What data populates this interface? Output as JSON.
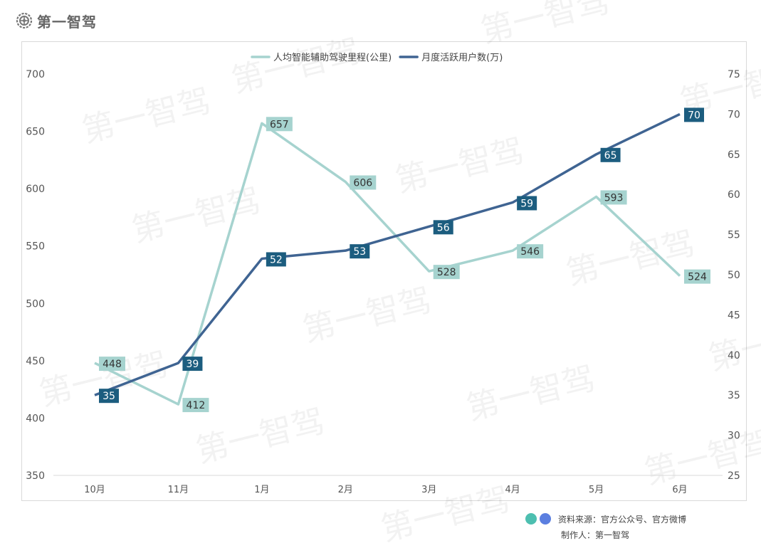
{
  "brand": {
    "name": "第一智驾",
    "icon": "gear-icon"
  },
  "watermark_text": "第一智驾",
  "footer": {
    "source": "资料来源：官方公众号、官方微博",
    "author": "制作人：第一智驾",
    "dot_colors": [
      "#4dbfb0",
      "#5b7fe0"
    ]
  },
  "chart_data": {
    "type": "line",
    "title": "",
    "categories": [
      "10月",
      "11月",
      "1月",
      "2月",
      "3月",
      "4月",
      "5月",
      "6月"
    ],
    "legend_position": "top-center",
    "grid": false,
    "series": [
      {
        "name": "人均智能辅助驾驶里程(公里)",
        "axis": "left",
        "color": "#a6d3cf",
        "label_bg": "#a6d3cf",
        "label_color": "#333333",
        "values": [
          448,
          412,
          657,
          606,
          528,
          546,
          593,
          524
        ]
      },
      {
        "name": "月度活跃用户数(万)",
        "axis": "right",
        "color": "#3f6492",
        "label_bg": "#1c5d7f",
        "label_color": "#ffffff",
        "values": [
          35,
          39,
          52,
          53,
          56,
          59,
          65,
          70
        ]
      }
    ],
    "y_left": {
      "range": [
        350,
        700
      ],
      "ticks": [
        "350",
        "400",
        "450",
        "500",
        "550",
        "600",
        "650",
        "700"
      ]
    },
    "y_right": {
      "range": [
        25,
        75
      ],
      "ticks": [
        "25",
        "30",
        "35",
        "40",
        "45",
        "50",
        "55",
        "60",
        "65",
        "70",
        "75"
      ]
    }
  }
}
